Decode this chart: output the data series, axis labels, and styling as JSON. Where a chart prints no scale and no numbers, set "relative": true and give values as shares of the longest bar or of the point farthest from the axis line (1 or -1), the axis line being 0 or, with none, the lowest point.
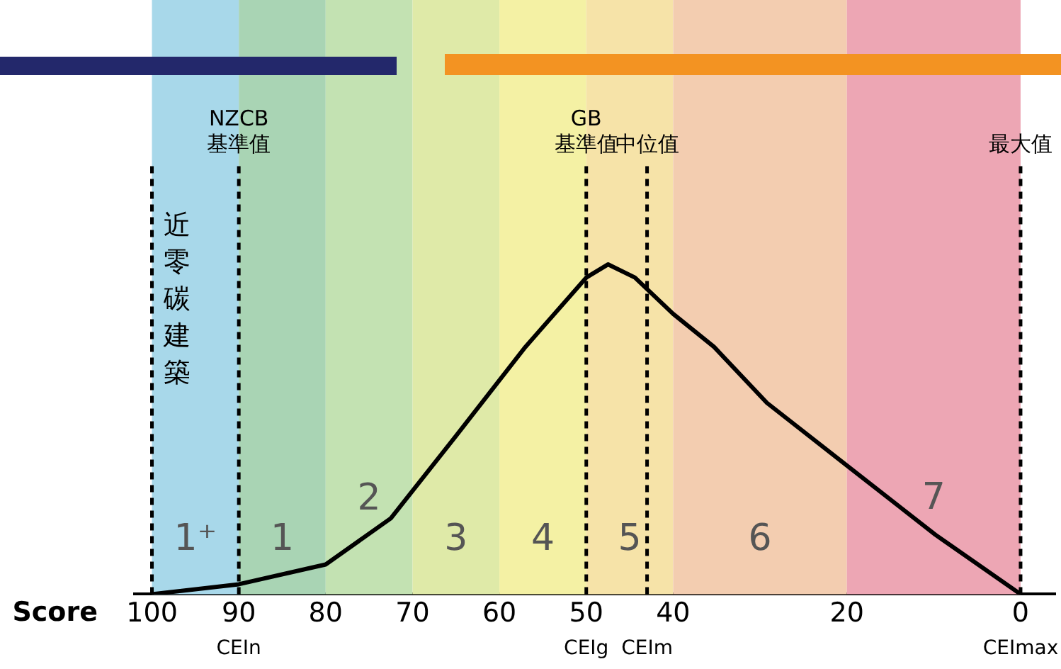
{
  "chart_data": {
    "type": "line",
    "relative": true,
    "xlabel": "Score",
    "x": [
      100,
      90,
      80,
      72.5,
      65,
      57,
      50,
      47.5,
      44.4,
      40,
      35.3,
      29.2,
      20,
      9.8,
      0
    ],
    "series": [
      {
        "color": "#000000",
        "values": [
          0,
          0.03,
          0.09,
          0.23,
          0.48,
          0.75,
          0.96,
          1,
          0.96,
          0.85,
          0.75,
          0.58,
          0.39,
          0.18,
          0
        ]
      }
    ],
    "xlim": [
      102,
      -4
    ],
    "xticks": [
      100,
      90,
      80,
      70,
      60,
      50,
      40,
      20,
      0
    ],
    "marker": "none",
    "grid": false,
    "legend": false,
    "bands": [
      {
        "axis": "x",
        "from": 100,
        "to": 90,
        "label": "1⁺",
        "color": "#a8d8ea"
      },
      {
        "axis": "x",
        "from": 90,
        "to": 80,
        "label": "1",
        "color": "#a9d4b4"
      },
      {
        "axis": "x",
        "from": 80,
        "to": 70,
        "label": "2",
        "color": "#c3e2b2"
      },
      {
        "axis": "x",
        "from": 70,
        "to": 60,
        "label": "3",
        "color": "#dfeaa8"
      },
      {
        "axis": "x",
        "from": 60,
        "to": 50,
        "label": "4",
        "color": "#f4f1a4"
      },
      {
        "axis": "x",
        "from": 50,
        "to": 40,
        "label": "5",
        "color": "#f6e3a8"
      },
      {
        "axis": "x",
        "from": 40,
        "to": 20,
        "label": "6",
        "color": "#f3cdb0"
      },
      {
        "axis": "x",
        "from": 20,
        "to": 0,
        "label": "7",
        "color": "#eda6b4"
      }
    ],
    "ref_lines": [
      {
        "axis": "x",
        "value": 100,
        "label": null,
        "line_style": "dashed"
      },
      {
        "axis": "x",
        "value": 90,
        "label": "NZCB\n基準值",
        "line_style": "dashed"
      },
      {
        "axis": "x",
        "value": 50,
        "label": "GB\n基準值",
        "line_style": "dashed"
      },
      {
        "axis": "x",
        "value": 43,
        "label": "中位值",
        "line_style": "dashed"
      },
      {
        "axis": "x",
        "value": 0,
        "label": "最大值",
        "line_style": "dashed"
      }
    ],
    "annotations": [
      "近零碳建築",
      {
        "text": "CEIn",
        "x": 90,
        "y": 0
      },
      {
        "text": "CEIg",
        "x": 50,
        "y": 0
      },
      {
        "text": "CEIm",
        "x": 43,
        "y": 0
      },
      {
        "text": "CEImax",
        "x": 0,
        "y": 0
      }
    ]
  }
}
